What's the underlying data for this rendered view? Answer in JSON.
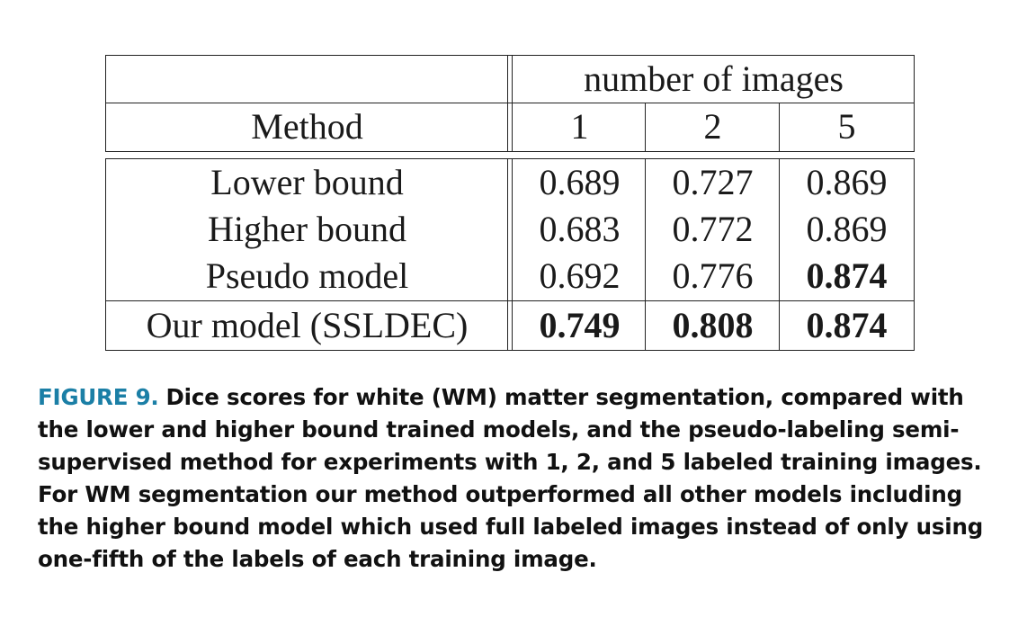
{
  "table": {
    "group_header": "number of images",
    "method_header": "Method",
    "columns": [
      "1",
      "2",
      "5"
    ],
    "rows": [
      {
        "method": "Lower bound",
        "values": [
          "0.689",
          "0.727",
          "0.869"
        ],
        "bold": [
          false,
          false,
          false
        ]
      },
      {
        "method": "Higher bound",
        "values": [
          "0.683",
          "0.772",
          "0.869"
        ],
        "bold": [
          false,
          false,
          false
        ]
      },
      {
        "method": "Pseudo model",
        "values": [
          "0.692",
          "0.776",
          "0.874"
        ],
        "bold": [
          false,
          false,
          true
        ]
      },
      {
        "method": "Our model (SSLDEC)",
        "values": [
          "0.749",
          "0.808",
          "0.874"
        ],
        "bold": [
          true,
          true,
          true
        ]
      }
    ]
  },
  "caption": {
    "label": "FIGURE 9.",
    "text": "Dice scores for white (WM) matter segmentation, compared with the lower and higher bound trained models, and the pseudo-labeling semi-supervised method for experiments with 1, 2, and 5 labeled training images. For WM segmentation our method outperformed all other models including the higher bound model which used full labeled images instead of only using one-fifth of the labels of each training image."
  },
  "colors": {
    "figure_label": "#1b7fa6",
    "text": "#111111",
    "rules": "#222222"
  }
}
